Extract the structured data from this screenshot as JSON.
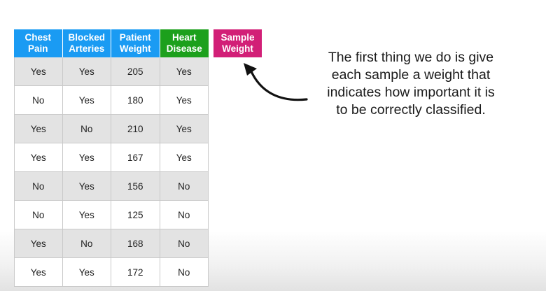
{
  "table": {
    "headers": [
      {
        "line1": "Chest",
        "line2": "Pain",
        "color": "#1a9bf3"
      },
      {
        "line1": "Blocked",
        "line2": "Arteries",
        "color": "#1a9bf3"
      },
      {
        "line1": "Patient",
        "line2": "Weight",
        "color": "#1a9bf3"
      },
      {
        "line1": "Heart",
        "line2": "Disease",
        "color": "#1ca01c"
      }
    ],
    "rows": [
      [
        "Yes",
        "Yes",
        "205",
        "Yes"
      ],
      [
        "No",
        "Yes",
        "180",
        "Yes"
      ],
      [
        "Yes",
        "No",
        "210",
        "Yes"
      ],
      [
        "Yes",
        "Yes",
        "167",
        "Yes"
      ],
      [
        "No",
        "Yes",
        "156",
        "No"
      ],
      [
        "No",
        "Yes",
        "125",
        "No"
      ],
      [
        "Yes",
        "No",
        "168",
        "No"
      ],
      [
        "Yes",
        "Yes",
        "172",
        "No"
      ]
    ]
  },
  "sample_weight": {
    "line1": "Sample",
    "line2": "Weight",
    "color": "#d21f77"
  },
  "annotation": {
    "lines": [
      "The first thing we do is give",
      "each sample a weight that",
      "indicates how important it is",
      "to be correctly classified."
    ],
    "arrow": "curved-arrow-icon"
  }
}
